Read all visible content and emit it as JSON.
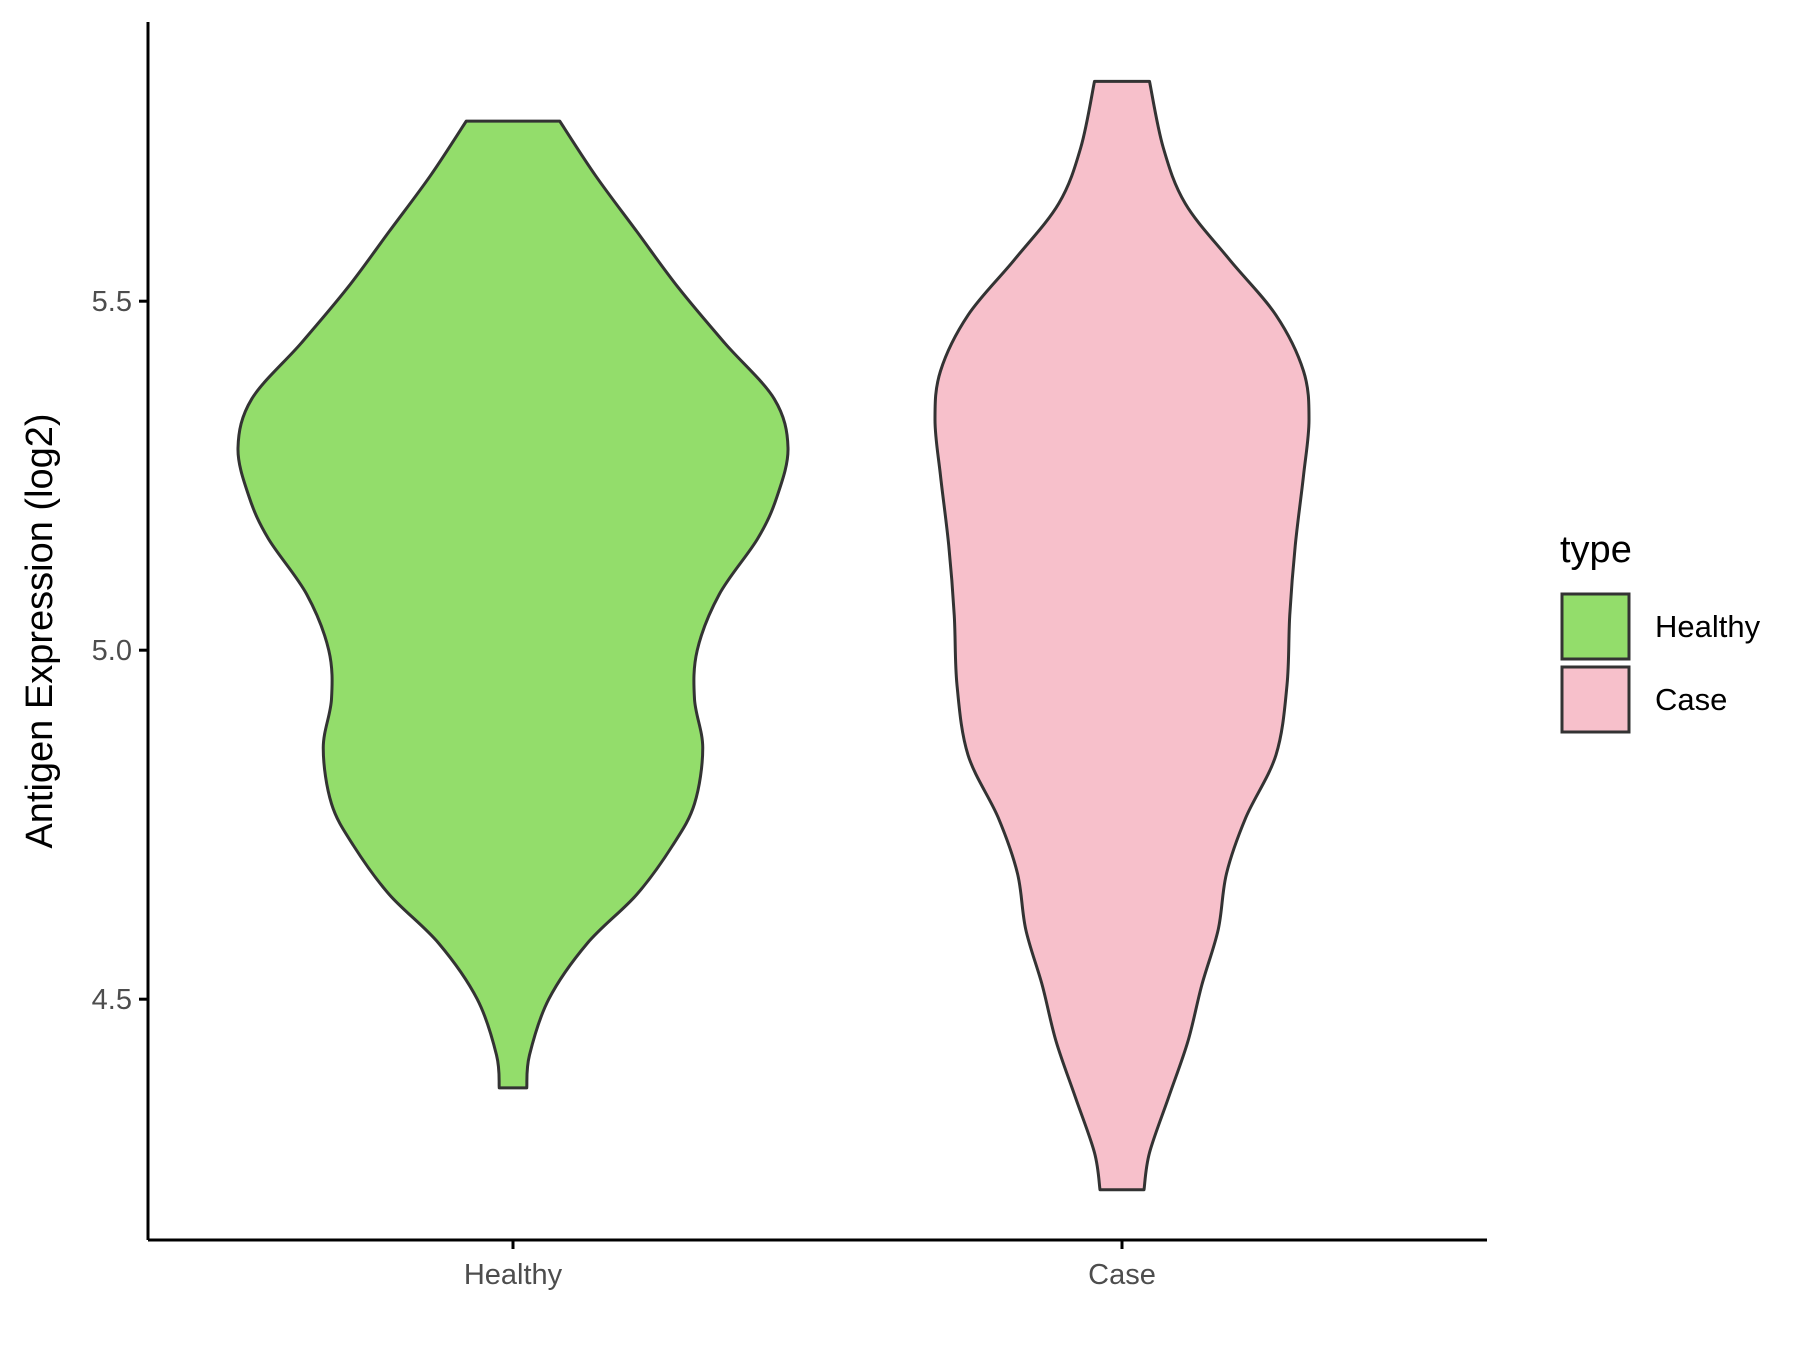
{
  "chart_data": {
    "type": "violin",
    "xlabel": "",
    "ylabel": "Antigen Expression (log2)",
    "categories": [
      "Healthy",
      "Case"
    ],
    "y_ticks": [
      "4.5",
      "5.0",
      "5.5"
    ],
    "ylim": [
      4.155,
      5.9
    ],
    "grid": false,
    "legend": {
      "title": "type",
      "position": "right",
      "items": [
        {
          "label": "Healthy",
          "color": "#93dd6b"
        },
        {
          "label": "Case",
          "color": "#f7c0cb"
        }
      ]
    },
    "outline_color": "#333333",
    "series": [
      {
        "name": "Healthy",
        "color": "#93dd6b",
        "min": 4.373,
        "max": 5.758,
        "half_width_profile": [
          [
            4.373,
            0.05
          ],
          [
            4.42,
            0.06
          ],
          [
            4.5,
            0.13
          ],
          [
            4.58,
            0.27
          ],
          [
            4.65,
            0.45
          ],
          [
            4.72,
            0.58
          ],
          [
            4.78,
            0.66
          ],
          [
            4.86,
            0.69
          ],
          [
            4.93,
            0.66
          ],
          [
            5.0,
            0.67
          ],
          [
            5.08,
            0.75
          ],
          [
            5.16,
            0.89
          ],
          [
            5.22,
            0.96
          ],
          [
            5.29,
            1.0
          ],
          [
            5.36,
            0.95
          ],
          [
            5.44,
            0.77
          ],
          [
            5.52,
            0.6
          ],
          [
            5.6,
            0.45
          ],
          [
            5.68,
            0.3
          ],
          [
            5.758,
            0.17
          ]
        ]
      },
      {
        "name": "Case",
        "color": "#f7c0cb",
        "min": 4.227,
        "max": 5.815,
        "half_width_profile": [
          [
            4.227,
            0.08
          ],
          [
            4.28,
            0.1
          ],
          [
            4.36,
            0.17
          ],
          [
            4.44,
            0.24
          ],
          [
            4.52,
            0.29
          ],
          [
            4.6,
            0.35
          ],
          [
            4.68,
            0.38
          ],
          [
            4.76,
            0.45
          ],
          [
            4.85,
            0.56
          ],
          [
            4.95,
            0.6
          ],
          [
            5.05,
            0.61
          ],
          [
            5.15,
            0.63
          ],
          [
            5.25,
            0.66
          ],
          [
            5.33,
            0.68
          ],
          [
            5.4,
            0.66
          ],
          [
            5.48,
            0.56
          ],
          [
            5.56,
            0.39
          ],
          [
            5.64,
            0.23
          ],
          [
            5.72,
            0.15
          ],
          [
            5.815,
            0.1
          ]
        ]
      }
    ]
  }
}
